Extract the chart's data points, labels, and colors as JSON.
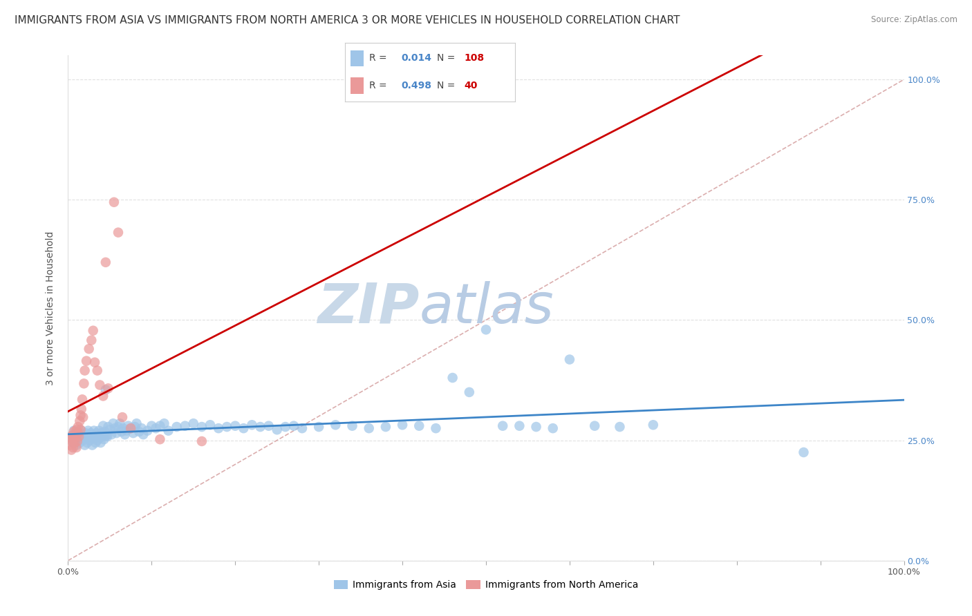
{
  "title": "IMMIGRANTS FROM ASIA VS IMMIGRANTS FROM NORTH AMERICA 3 OR MORE VEHICLES IN HOUSEHOLD CORRELATION CHART",
  "source": "Source: ZipAtlas.com",
  "ylabel": "3 or more Vehicles in Household",
  "legend_blue_R": "0.014",
  "legend_blue_N": "108",
  "legend_pink_R": "0.498",
  "legend_pink_N": "40",
  "legend_label_blue": "Immigrants from Asia",
  "legend_label_pink": "Immigrants from North America",
  "right_ytick_labels": [
    "0.0%",
    "25.0%",
    "50.0%",
    "75.0%",
    "100.0%"
  ],
  "right_ytick_vals": [
    0.0,
    0.25,
    0.5,
    0.75,
    1.0
  ],
  "xlim": [
    0.0,
    1.0
  ],
  "ylim": [
    0.0,
    1.05
  ],
  "color_blue": "#9fc5e8",
  "color_pink": "#ea9999",
  "color_blue_line": "#3d85c8",
  "color_pink_line": "#cc0000",
  "diag_line_color": "#d5a0a0",
  "watermark_zip_color": "#c8d8e8",
  "watermark_atlas_color": "#b8cce4",
  "background_color": "#ffffff",
  "grid_color": "#e0e0e0",
  "title_fontsize": 11,
  "axis_fontsize": 10,
  "tick_fontsize": 9,
  "blue_scatter_x": [
    0.003,
    0.005,
    0.006,
    0.007,
    0.008,
    0.009,
    0.01,
    0.01,
    0.011,
    0.012,
    0.013,
    0.014,
    0.015,
    0.016,
    0.017,
    0.018,
    0.019,
    0.02,
    0.02,
    0.021,
    0.022,
    0.023,
    0.024,
    0.025,
    0.026,
    0.027,
    0.028,
    0.029,
    0.03,
    0.031,
    0.032,
    0.033,
    0.034,
    0.035,
    0.036,
    0.037,
    0.038,
    0.039,
    0.04,
    0.041,
    0.042,
    0.043,
    0.044,
    0.045,
    0.046,
    0.047,
    0.048,
    0.05,
    0.052,
    0.054,
    0.056,
    0.058,
    0.06,
    0.062,
    0.064,
    0.066,
    0.068,
    0.07,
    0.072,
    0.075,
    0.078,
    0.08,
    0.082,
    0.085,
    0.088,
    0.09,
    0.095,
    0.1,
    0.105,
    0.11,
    0.115,
    0.12,
    0.13,
    0.14,
    0.15,
    0.16,
    0.17,
    0.18,
    0.19,
    0.2,
    0.21,
    0.22,
    0.23,
    0.24,
    0.25,
    0.26,
    0.27,
    0.28,
    0.3,
    0.32,
    0.34,
    0.36,
    0.38,
    0.4,
    0.42,
    0.44,
    0.46,
    0.48,
    0.5,
    0.52,
    0.54,
    0.56,
    0.58,
    0.6,
    0.63,
    0.66,
    0.7,
    0.88
  ],
  "blue_scatter_y": [
    0.255,
    0.26,
    0.245,
    0.27,
    0.25,
    0.265,
    0.255,
    0.24,
    0.26,
    0.25,
    0.265,
    0.245,
    0.255,
    0.27,
    0.26,
    0.25,
    0.255,
    0.26,
    0.24,
    0.265,
    0.255,
    0.245,
    0.27,
    0.26,
    0.25,
    0.265,
    0.255,
    0.24,
    0.26,
    0.27,
    0.255,
    0.245,
    0.265,
    0.25,
    0.26,
    0.27,
    0.255,
    0.245,
    0.265,
    0.258,
    0.28,
    0.252,
    0.268,
    0.355,
    0.26,
    0.258,
    0.278,
    0.272,
    0.262,
    0.285,
    0.275,
    0.265,
    0.278,
    0.285,
    0.268,
    0.275,
    0.262,
    0.27,
    0.28,
    0.275,
    0.265,
    0.278,
    0.285,
    0.268,
    0.275,
    0.262,
    0.27,
    0.28,
    0.275,
    0.28,
    0.285,
    0.27,
    0.278,
    0.28,
    0.285,
    0.278,
    0.282,
    0.275,
    0.278,
    0.28,
    0.275,
    0.282,
    0.278,
    0.28,
    0.272,
    0.278,
    0.28,
    0.275,
    0.278,
    0.282,
    0.28,
    0.275,
    0.278,
    0.282,
    0.28,
    0.275,
    0.38,
    0.35,
    0.48,
    0.28,
    0.28,
    0.278,
    0.275,
    0.418,
    0.28,
    0.278,
    0.282,
    0.225
  ],
  "pink_scatter_x": [
    0.002,
    0.003,
    0.004,
    0.005,
    0.005,
    0.006,
    0.007,
    0.007,
    0.008,
    0.009,
    0.01,
    0.01,
    0.011,
    0.012,
    0.012,
    0.013,
    0.014,
    0.015,
    0.015,
    0.016,
    0.017,
    0.018,
    0.019,
    0.02,
    0.022,
    0.025,
    0.028,
    0.03,
    0.032,
    0.035,
    0.038,
    0.042,
    0.045,
    0.048,
    0.055,
    0.06,
    0.065,
    0.075,
    0.11,
    0.16
  ],
  "pink_scatter_y": [
    0.24,
    0.255,
    0.23,
    0.248,
    0.26,
    0.235,
    0.252,
    0.268,
    0.245,
    0.258,
    0.272,
    0.235,
    0.248,
    0.265,
    0.278,
    0.258,
    0.29,
    0.302,
    0.272,
    0.315,
    0.335,
    0.298,
    0.368,
    0.395,
    0.415,
    0.44,
    0.458,
    0.478,
    0.412,
    0.395,
    0.365,
    0.342,
    0.62,
    0.358,
    0.745,
    0.682,
    0.298,
    0.275,
    0.252,
    0.248
  ]
}
